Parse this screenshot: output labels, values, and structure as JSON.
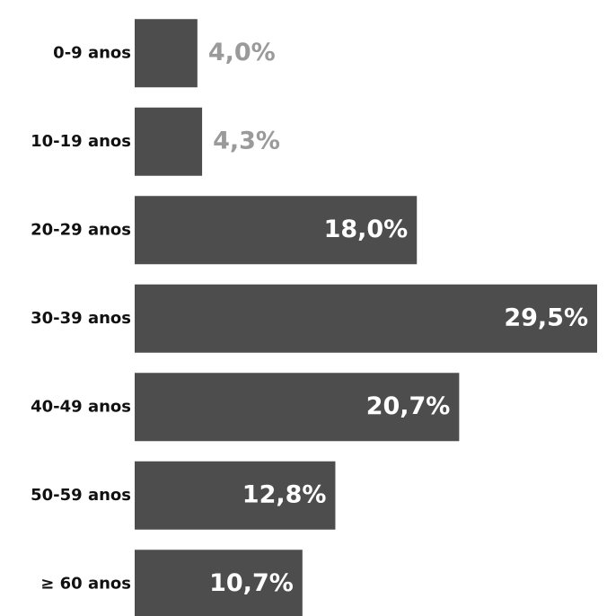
{
  "chart_data": {
    "type": "bar",
    "orientation": "horizontal",
    "categories": [
      "0-9 anos",
      "10-19 anos",
      "20-29 anos",
      "30-39 anos",
      "40-49 anos",
      "50-59 anos",
      "≥ 60 anos"
    ],
    "values": [
      4.0,
      4.3,
      18.0,
      29.5,
      20.7,
      12.8,
      10.7
    ],
    "value_labels": [
      "4,0%",
      "4,3%",
      "18,0%",
      "29,5%",
      "20,7%",
      "12,8%",
      "10,7%"
    ],
    "color": "#4d4d4d"
  }
}
